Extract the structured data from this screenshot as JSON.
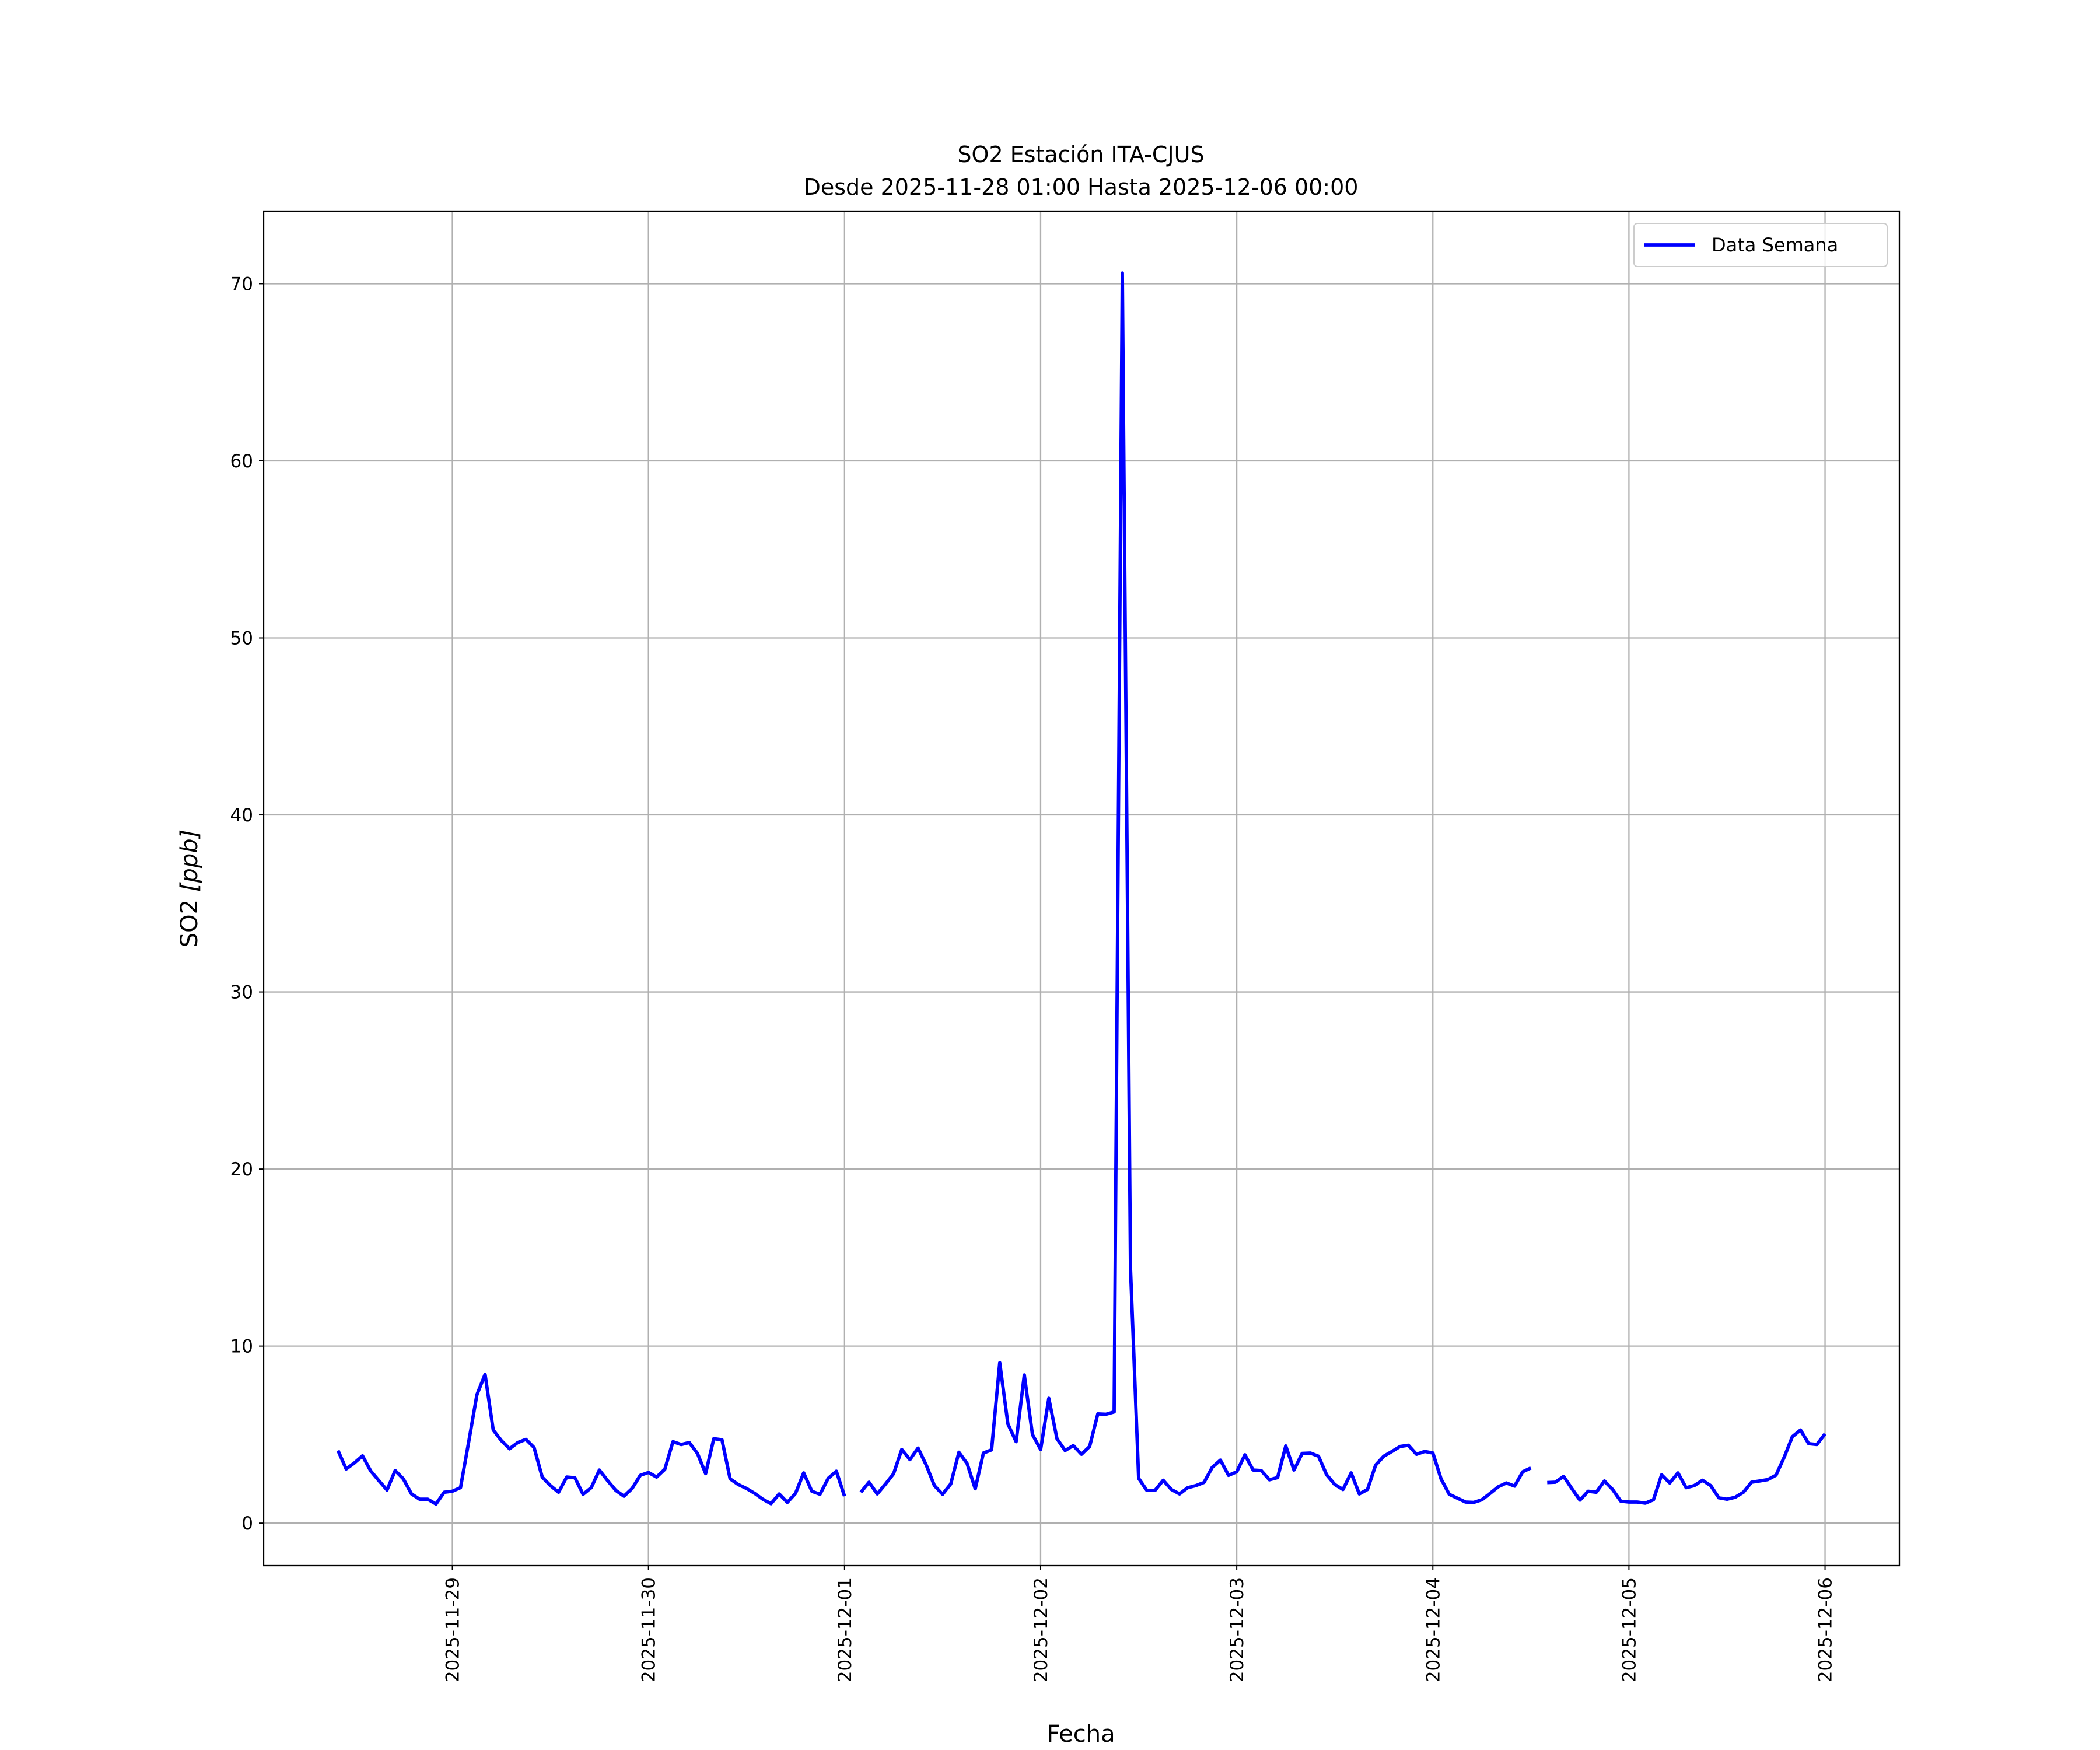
{
  "chart_data": {
    "type": "line",
    "title": "SO2 Estación ITA-CJUS",
    "subtitle": "Desde 2025-11-28 01:00 Hasta 2025-12-06 00:00",
    "xlabel": "Fecha",
    "ylabel_prefix": "SO2 ",
    "ylabel_unit": "[ppb]",
    "xlim": [
      "2025-11-28 00:54",
      "2025-12-06 09:06"
    ],
    "ylim": [
      -2.4,
      74.1
    ],
    "x_ticks": [
      "2025-11-29",
      "2025-11-30",
      "2025-12-01",
      "2025-12-02",
      "2025-12-03",
      "2025-12-04",
      "2025-12-05",
      "2025-12-06"
    ],
    "y_ticks": [
      0,
      10,
      20,
      30,
      40,
      50,
      60,
      70
    ],
    "grid": true,
    "legend_position": "top-right",
    "colors": {
      "line": "#0000ff",
      "grid": "#b0b0b0"
    },
    "series": [
      {
        "name": "Data Semana",
        "start": "2025-11-28 10:00",
        "interval": "1h",
        "values": [
          4.1,
          3.06,
          3.4,
          3.8,
          2.95,
          2.4,
          1.87,
          2.97,
          2.5,
          1.65,
          1.35,
          1.35,
          1.08,
          1.74,
          1.8,
          2.0,
          4.6,
          7.25,
          8.4,
          5.26,
          4.66,
          4.2,
          4.55,
          4.73,
          4.27,
          2.6,
          2.12,
          1.74,
          2.6,
          2.56,
          1.63,
          2.0,
          3.0,
          2.4,
          1.85,
          1.52,
          1.96,
          2.7,
          2.86,
          2.6,
          3.04,
          4.6,
          4.44,
          4.55,
          3.94,
          2.8,
          4.77,
          4.71,
          2.5,
          2.18,
          1.96,
          1.68,
          1.35,
          1.1,
          1.65,
          1.17,
          1.68,
          2.84,
          1.8,
          1.63,
          2.53,
          2.93,
          1.52,
          null,
          1.74,
          2.31,
          1.65,
          2.2,
          2.79,
          4.16,
          3.59,
          4.24,
          3.28,
          2.12,
          1.63,
          2.21,
          4.0,
          3.37,
          1.94,
          3.96,
          4.14,
          9.06,
          5.6,
          4.6,
          8.37,
          5.0,
          4.16,
          7.05,
          4.77,
          4.1,
          4.38,
          3.89,
          4.33,
          6.17,
          6.15,
          6.28,
          70.6,
          14.4,
          2.53,
          1.85,
          1.85,
          2.42,
          1.9,
          1.65,
          2.0,
          2.12,
          2.3,
          3.15,
          3.56,
          2.7,
          2.9,
          3.86,
          3.0,
          2.97,
          2.45,
          2.57,
          4.36,
          3.0,
          3.94,
          3.96,
          3.78,
          2.73,
          2.18,
          1.9,
          2.84,
          1.65,
          1.9,
          3.28,
          3.78,
          4.05,
          4.33,
          4.4,
          3.89,
          4.05,
          3.96,
          2.5,
          1.63,
          1.41,
          1.19,
          1.17,
          1.32,
          1.68,
          2.05,
          2.27,
          2.09,
          2.9,
          3.12,
          null,
          2.29,
          2.31,
          2.64,
          1.96,
          1.3,
          1.8,
          1.74,
          2.38,
          1.9,
          1.24,
          1.19,
          1.19,
          1.13,
          1.32,
          2.73,
          2.27,
          2.84,
          2.0,
          2.12,
          2.42,
          2.12,
          1.43,
          1.35,
          1.46,
          1.74,
          2.31,
          2.38,
          2.46,
          2.71,
          3.72,
          4.88,
          5.26,
          4.49,
          4.44,
          5.04
        ]
      }
    ]
  }
}
